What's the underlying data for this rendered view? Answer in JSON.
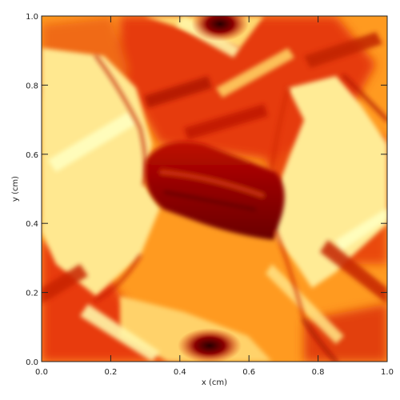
{
  "chart_data": {
    "type": "heatmap",
    "title": "",
    "xlabel": "x (cm)",
    "ylabel": "y (cm)",
    "xlim": [
      0.0,
      1.0
    ],
    "ylim": [
      0.0,
      1.0
    ],
    "x_ticks": [
      "0.0",
      "0.2",
      "0.4",
      "0.6",
      "0.8",
      "1.0"
    ],
    "y_ticks": [
      "0.0",
      "0.2",
      "0.4",
      "0.6",
      "0.8",
      "1.0"
    ],
    "grid": false,
    "legend": "none",
    "colormap": "red-to-yellow",
    "colors": {
      "low": "#2a0000",
      "mid_low": "#8a0000",
      "mid": "#e03000",
      "mid_high": "#ff8a10",
      "high": "#ffe070",
      "max": "#ffffc0"
    }
  }
}
